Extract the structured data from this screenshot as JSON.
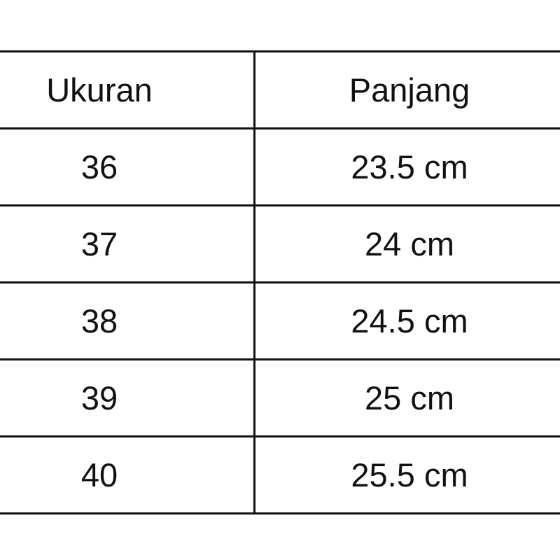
{
  "table": {
    "headers": [
      "Ukuran",
      "Panjang"
    ],
    "rows": [
      [
        "36",
        "23.5 cm"
      ],
      [
        "37",
        "24 cm"
      ],
      [
        "38",
        "24.5 cm"
      ],
      [
        "39",
        "25 cm"
      ],
      [
        "40",
        "25.5 cm"
      ]
    ]
  }
}
